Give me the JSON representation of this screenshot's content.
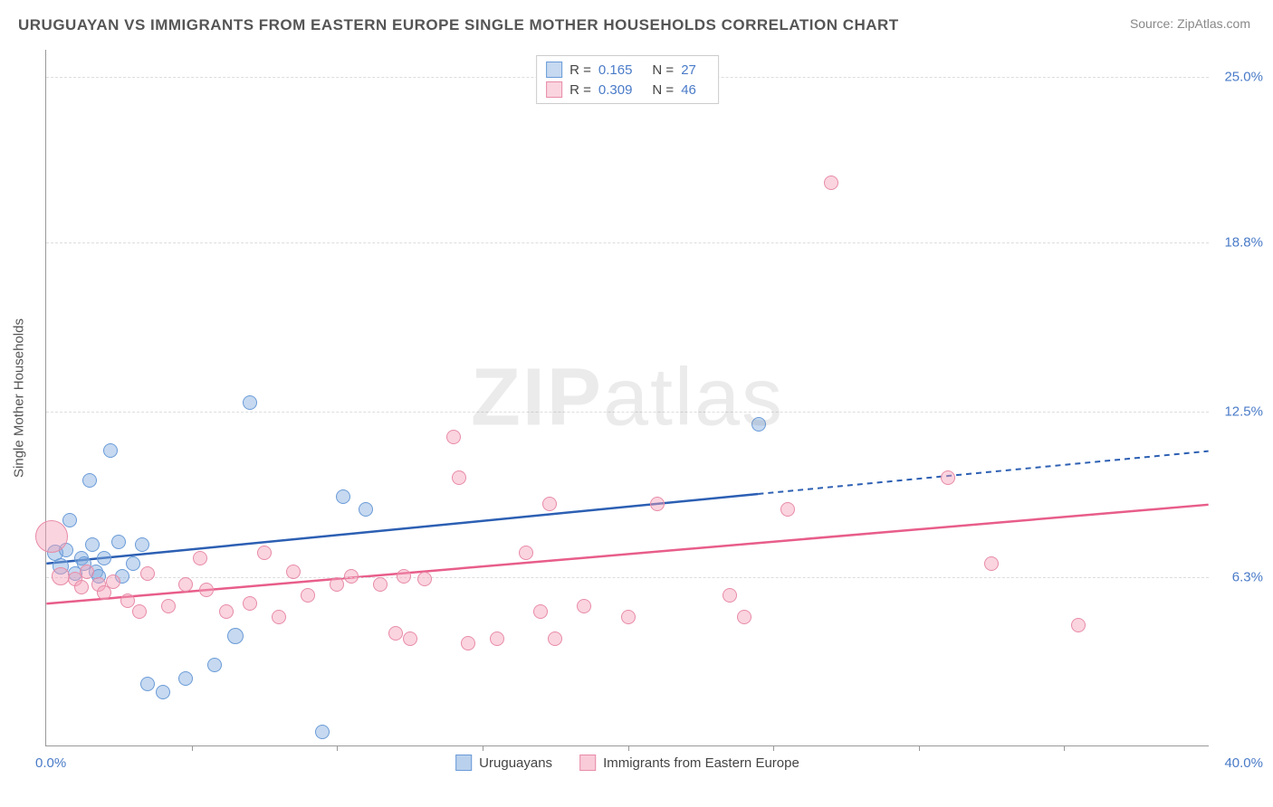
{
  "title": "URUGUAYAN VS IMMIGRANTS FROM EASTERN EUROPE SINGLE MOTHER HOUSEHOLDS CORRELATION CHART",
  "source": "Source: ZipAtlas.com",
  "watermark_a": "ZIP",
  "watermark_b": "atlas",
  "chart": {
    "type": "scatter",
    "ylabel": "Single Mother Households",
    "xlim": [
      0.0,
      40.0
    ],
    "ylim": [
      0.0,
      26.0
    ],
    "xlim_labels": [
      "0.0%",
      "40.0%"
    ],
    "ytick_values": [
      6.3,
      12.5,
      18.8,
      25.0
    ],
    "ytick_labels": [
      "6.3%",
      "12.5%",
      "18.8%",
      "25.0%"
    ],
    "xtick_values": [
      5,
      10,
      15,
      20,
      25,
      30,
      35
    ],
    "background_color": "#ffffff",
    "grid_color": "#dddddd",
    "axis_color": "#999999",
    "tick_label_color": "#4a7bc8",
    "point_radius": 8,
    "series": [
      {
        "name": "Uruguayans",
        "fill": "rgba(129,171,222,0.45)",
        "stroke": "#6a9bd8",
        "trend_color": "#2c5fb3",
        "trend": {
          "x1": 0,
          "y1": 6.8,
          "x2": 24.5,
          "y2": 9.4,
          "x2_dash": 40,
          "y2_dash": 11.0
        },
        "R": "0.165",
        "N": "27",
        "points": [
          {
            "x": 0.3,
            "y": 7.2,
            "r": 9
          },
          {
            "x": 0.5,
            "y": 6.7,
            "r": 9
          },
          {
            "x": 0.7,
            "y": 7.3,
            "r": 8
          },
          {
            "x": 0.8,
            "y": 8.4,
            "r": 8
          },
          {
            "x": 1.0,
            "y": 6.4,
            "r": 8
          },
          {
            "x": 1.2,
            "y": 7.0,
            "r": 8
          },
          {
            "x": 1.3,
            "y": 6.8,
            "r": 8
          },
          {
            "x": 1.5,
            "y": 9.9,
            "r": 8
          },
          {
            "x": 1.6,
            "y": 7.5,
            "r": 8
          },
          {
            "x": 1.7,
            "y": 6.5,
            "r": 8
          },
          {
            "x": 1.8,
            "y": 6.3,
            "r": 8
          },
          {
            "x": 2.0,
            "y": 7.0,
            "r": 8
          },
          {
            "x": 2.2,
            "y": 11.0,
            "r": 8
          },
          {
            "x": 2.5,
            "y": 7.6,
            "r": 8
          },
          {
            "x": 2.6,
            "y": 6.3,
            "r": 8
          },
          {
            "x": 3.0,
            "y": 6.8,
            "r": 8
          },
          {
            "x": 3.3,
            "y": 7.5,
            "r": 8
          },
          {
            "x": 3.5,
            "y": 2.3,
            "r": 8
          },
          {
            "x": 4.0,
            "y": 2.0,
            "r": 8
          },
          {
            "x": 4.8,
            "y": 2.5,
            "r": 8
          },
          {
            "x": 5.8,
            "y": 3.0,
            "r": 8
          },
          {
            "x": 6.5,
            "y": 4.1,
            "r": 9
          },
          {
            "x": 7.0,
            "y": 12.8,
            "r": 8
          },
          {
            "x": 9.5,
            "y": 0.5,
            "r": 8
          },
          {
            "x": 10.2,
            "y": 9.3,
            "r": 8
          },
          {
            "x": 11.0,
            "y": 8.8,
            "r": 8
          },
          {
            "x": 24.5,
            "y": 12.0,
            "r": 8
          }
        ]
      },
      {
        "name": "Immigrants from Eastern Europe",
        "fill": "rgba(244,160,185,0.45)",
        "stroke": "#e88ba8",
        "trend_color": "#e85d8a",
        "trend": {
          "x1": 0,
          "y1": 5.3,
          "x2": 40,
          "y2": 9.0,
          "x2_dash": 40,
          "y2_dash": 9.0
        },
        "R": "0.309",
        "N": "46",
        "points": [
          {
            "x": 0.2,
            "y": 7.8,
            "r": 18
          },
          {
            "x": 0.5,
            "y": 6.3,
            "r": 10
          },
          {
            "x": 1.0,
            "y": 6.2,
            "r": 8
          },
          {
            "x": 1.2,
            "y": 5.9,
            "r": 8
          },
          {
            "x": 1.4,
            "y": 6.5,
            "r": 8
          },
          {
            "x": 1.8,
            "y": 6.0,
            "r": 8
          },
          {
            "x": 2.0,
            "y": 5.7,
            "r": 8
          },
          {
            "x": 2.3,
            "y": 6.1,
            "r": 8
          },
          {
            "x": 2.8,
            "y": 5.4,
            "r": 8
          },
          {
            "x": 3.2,
            "y": 5.0,
            "r": 8
          },
          {
            "x": 3.5,
            "y": 6.4,
            "r": 8
          },
          {
            "x": 4.2,
            "y": 5.2,
            "r": 8
          },
          {
            "x": 4.8,
            "y": 6.0,
            "r": 8
          },
          {
            "x": 5.3,
            "y": 7.0,
            "r": 8
          },
          {
            "x": 5.5,
            "y": 5.8,
            "r": 8
          },
          {
            "x": 6.2,
            "y": 5.0,
            "r": 8
          },
          {
            "x": 7.0,
            "y": 5.3,
            "r": 8
          },
          {
            "x": 7.5,
            "y": 7.2,
            "r": 8
          },
          {
            "x": 8.0,
            "y": 4.8,
            "r": 8
          },
          {
            "x": 8.5,
            "y": 6.5,
            "r": 8
          },
          {
            "x": 9.0,
            "y": 5.6,
            "r": 8
          },
          {
            "x": 10.0,
            "y": 6.0,
            "r": 8
          },
          {
            "x": 10.5,
            "y": 6.3,
            "r": 8
          },
          {
            "x": 11.5,
            "y": 6.0,
            "r": 8
          },
          {
            "x": 12.0,
            "y": 4.2,
            "r": 8
          },
          {
            "x": 12.3,
            "y": 6.3,
            "r": 8
          },
          {
            "x": 12.5,
            "y": 4.0,
            "r": 8
          },
          {
            "x": 13.0,
            "y": 6.2,
            "r": 8
          },
          {
            "x": 14.0,
            "y": 11.5,
            "r": 8
          },
          {
            "x": 14.2,
            "y": 10.0,
            "r": 8
          },
          {
            "x": 14.5,
            "y": 3.8,
            "r": 8
          },
          {
            "x": 15.5,
            "y": 4.0,
            "r": 8
          },
          {
            "x": 16.5,
            "y": 7.2,
            "r": 8
          },
          {
            "x": 17.0,
            "y": 5.0,
            "r": 8
          },
          {
            "x": 17.3,
            "y": 9.0,
            "r": 8
          },
          {
            "x": 17.5,
            "y": 4.0,
            "r": 8
          },
          {
            "x": 18.5,
            "y": 5.2,
            "r": 8
          },
          {
            "x": 20.0,
            "y": 4.8,
            "r": 8
          },
          {
            "x": 21.0,
            "y": 9.0,
            "r": 8
          },
          {
            "x": 23.5,
            "y": 5.6,
            "r": 8
          },
          {
            "x": 24.0,
            "y": 4.8,
            "r": 8
          },
          {
            "x": 25.5,
            "y": 8.8,
            "r": 8
          },
          {
            "x": 27.0,
            "y": 21.0,
            "r": 8
          },
          {
            "x": 31.0,
            "y": 10.0,
            "r": 8
          },
          {
            "x": 32.5,
            "y": 6.8,
            "r": 8
          },
          {
            "x": 35.5,
            "y": 4.5,
            "r": 8
          }
        ]
      }
    ],
    "legend_top": {
      "label_r": "R =",
      "label_n": "N ="
    },
    "legend_bottom": [
      {
        "label": "Uruguayans",
        "fill": "rgba(129,171,222,0.55)",
        "stroke": "#6a9bd8"
      },
      {
        "label": "Immigrants from Eastern Europe",
        "fill": "rgba(244,160,185,0.55)",
        "stroke": "#e88ba8"
      }
    ]
  }
}
